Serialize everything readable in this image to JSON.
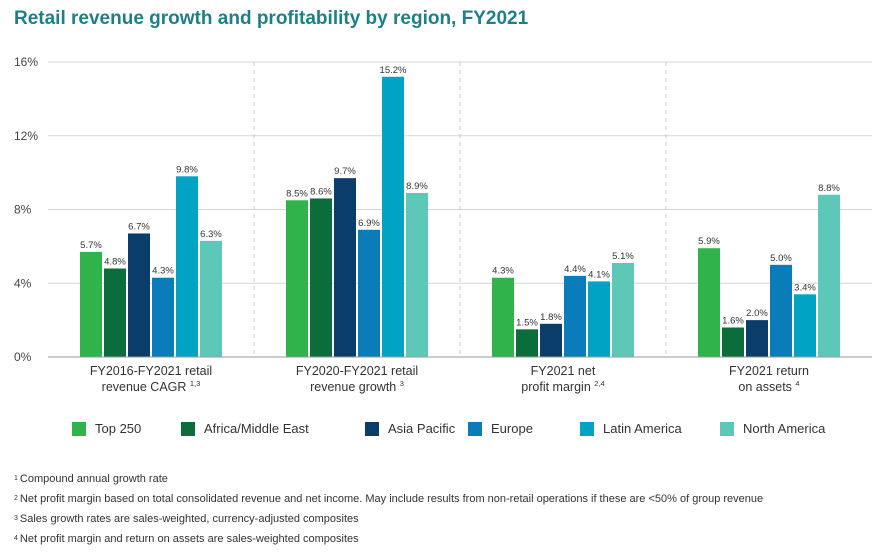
{
  "page": {
    "title": "Retail revenue growth and profitability by region, FY2021"
  },
  "chart_data": {
    "type": "bar",
    "title": "Retail revenue growth and profitability by region, FY2021",
    "xlabel": "",
    "ylabel": "",
    "ylim": [
      0,
      16
    ],
    "y_ticks": [
      0,
      4,
      8,
      12,
      16
    ],
    "y_tick_labels": [
      "0%",
      "4%",
      "8%",
      "12%",
      "16%"
    ],
    "grid": true,
    "legend_position": "bottom",
    "categories": [
      {
        "line1": "FY2016-FY2021 retail",
        "line2": "revenue CAGR",
        "sup": "1,3"
      },
      {
        "line1": "FY2020-FY2021 retail",
        "line2": "revenue growth",
        "sup": "3"
      },
      {
        "line1": "FY2021 net",
        "line2": "profit margin",
        "sup": "2,4"
      },
      {
        "line1": "FY2021 return",
        "line2": "on assets",
        "sup": "4"
      }
    ],
    "series": [
      {
        "name": "Top 250",
        "color": "#2fb34a",
        "values": [
          5.7,
          8.5,
          4.3,
          5.9
        ],
        "labels": [
          "5.7%",
          "8.5%",
          "4.3%",
          "5.9%"
        ]
      },
      {
        "name": "Africa/Middle East",
        "color": "#0b6e3a",
        "values": [
          4.8,
          8.6,
          1.5,
          1.6
        ],
        "labels": [
          "4.8%",
          "8.6%",
          "1.5%",
          "1.6%"
        ]
      },
      {
        "name": "Asia Pacific",
        "color": "#0b3d6b",
        "values": [
          6.7,
          9.7,
          1.8,
          2.0
        ],
        "labels": [
          "6.7%",
          "9.7%",
          "1.8%",
          "2.0%"
        ]
      },
      {
        "name": "Europe",
        "color": "#0a7cb9",
        "values": [
          4.3,
          6.9,
          4.4,
          5.0
        ],
        "labels": [
          "4.3%",
          "6.9%",
          "4.4%",
          "5.0%"
        ]
      },
      {
        "name": "Latin America",
        "color": "#00a3c4",
        "values": [
          9.8,
          15.2,
          4.1,
          3.4
        ],
        "labels": [
          "9.8%",
          "15.2%",
          "4.1%",
          "3.4%"
        ]
      },
      {
        "name": "North America",
        "color": "#5ec8b8",
        "values": [
          6.3,
          8.9,
          5.1,
          8.8
        ],
        "labels": [
          "6.3%",
          "8.9%",
          "5.1%",
          "8.8%"
        ]
      }
    ]
  },
  "footnotes": [
    {
      "mark": "1",
      "text": "Compound annual growth rate"
    },
    {
      "mark": "2",
      "text": "Net profit margin based on total consolidated revenue and net income. May include results from non-retail operations if these are <50% of group revenue"
    },
    {
      "mark": "3",
      "text": "Sales growth rates are sales-weighted, currency-adjusted composites"
    },
    {
      "mark": "4",
      "text": "Net profit margin and return on assets are sales-weighted composites"
    }
  ]
}
